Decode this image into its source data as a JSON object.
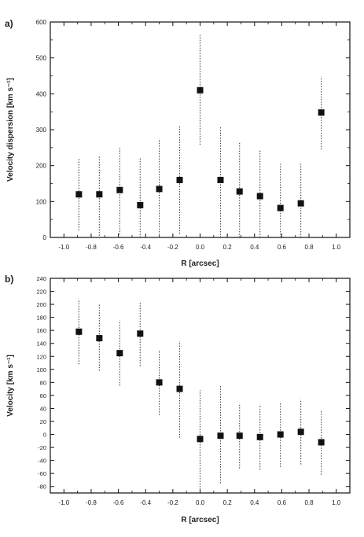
{
  "chart_data": [
    {
      "type": "scatter",
      "panel_label": "a)",
      "xlabel": "R [arcsec]",
      "ylabel": "Velocity dispersion [km s⁻¹]",
      "xlim": [
        -1.1,
        1.1
      ],
      "ylim": [
        0,
        600
      ],
      "xticks": [
        -1.0,
        -0.8,
        -0.6,
        -0.4,
        -0.2,
        0.0,
        0.2,
        0.4,
        0.6,
        0.8,
        1.0
      ],
      "xtick_labels": [
        "-1.0",
        "-0.8",
        "-0.6",
        "-0.4",
        "-0.2",
        "0.0",
        "0.2",
        "0.4",
        "0.6",
        "0.8",
        "1.0"
      ],
      "yticks": [
        0,
        100,
        200,
        300,
        400,
        500,
        600
      ],
      "ytick_labels": [
        "0",
        "100",
        "200",
        "300",
        "400",
        "500",
        "600"
      ],
      "points": [
        {
          "x": -0.89,
          "y": 120,
          "err_low": 20,
          "err_high": 220
        },
        {
          "x": -0.74,
          "y": 120,
          "err_low": 5,
          "err_high": 225
        },
        {
          "x": -0.59,
          "y": 132,
          "err_low": 8,
          "err_high": 250
        },
        {
          "x": -0.44,
          "y": 90,
          "err_low": 0,
          "err_high": 220
        },
        {
          "x": -0.3,
          "y": 135,
          "err_low": 0,
          "err_high": 275
        },
        {
          "x": -0.15,
          "y": 160,
          "err_low": 10,
          "err_high": 310
        },
        {
          "x": 0.0,
          "y": 410,
          "err_low": 258,
          "err_high": 565
        },
        {
          "x": 0.15,
          "y": 160,
          "err_low": 0,
          "err_high": 308
        },
        {
          "x": 0.29,
          "y": 128,
          "err_low": 0,
          "err_high": 265
        },
        {
          "x": 0.44,
          "y": 115,
          "err_low": 0,
          "err_high": 245
        },
        {
          "x": 0.59,
          "y": 82,
          "err_low": 0,
          "err_high": 205
        },
        {
          "x": 0.74,
          "y": 95,
          "err_low": 0,
          "err_high": 205
        },
        {
          "x": 0.89,
          "y": 348,
          "err_low": 245,
          "err_high": 448
        }
      ]
    },
    {
      "type": "scatter",
      "panel_label": "b)",
      "xlabel": "R [arcsec]",
      "ylabel": "Velocity [km s⁻¹]",
      "xlim": [
        -1.1,
        1.1
      ],
      "ylim": [
        -90,
        240
      ],
      "xticks": [
        -1.0,
        -0.8,
        -0.6,
        -0.4,
        -0.2,
        0.0,
        0.2,
        0.4,
        0.6,
        0.8,
        1.0
      ],
      "xtick_labels": [
        "-1.0",
        "-0.8",
        "-0.6",
        "-0.4",
        "-0.2",
        "0.0",
        "0.2",
        "0.4",
        "0.6",
        "0.8",
        "1.0"
      ],
      "yticks": [
        -80,
        -60,
        -40,
        -20,
        0,
        20,
        40,
        60,
        80,
        100,
        120,
        140,
        160,
        180,
        200,
        220,
        240
      ],
      "ytick_labels": [
        "-80",
        "-60",
        "-40",
        "-20",
        "0",
        "20",
        "40",
        "60",
        "80",
        "100",
        "120",
        "140",
        "160",
        "180",
        "200",
        "220",
        "240"
      ],
      "points": [
        {
          "x": -0.89,
          "y": 158,
          "err_low": 108,
          "err_high": 208
        },
        {
          "x": -0.74,
          "y": 148,
          "err_low": 98,
          "err_high": 200
        },
        {
          "x": -0.59,
          "y": 125,
          "err_low": 75,
          "err_high": 175
        },
        {
          "x": -0.44,
          "y": 155,
          "err_low": 105,
          "err_high": 205
        },
        {
          "x": -0.3,
          "y": 80,
          "err_low": 30,
          "err_high": 130
        },
        {
          "x": -0.15,
          "y": 70,
          "err_low": -5,
          "err_high": 143
        },
        {
          "x": 0.0,
          "y": -7,
          "err_low": -85,
          "err_high": 68
        },
        {
          "x": 0.15,
          "y": -2,
          "err_low": -75,
          "err_high": 75
        },
        {
          "x": 0.29,
          "y": -2,
          "err_low": -52,
          "err_high": 48
        },
        {
          "x": 0.44,
          "y": -4,
          "err_low": -54,
          "err_high": 46
        },
        {
          "x": 0.59,
          "y": 0,
          "err_low": -50,
          "err_high": 50
        },
        {
          "x": 0.74,
          "y": 4,
          "err_low": -46,
          "err_high": 54
        },
        {
          "x": 0.89,
          "y": -12,
          "err_low": -62,
          "err_high": 38
        }
      ]
    }
  ]
}
